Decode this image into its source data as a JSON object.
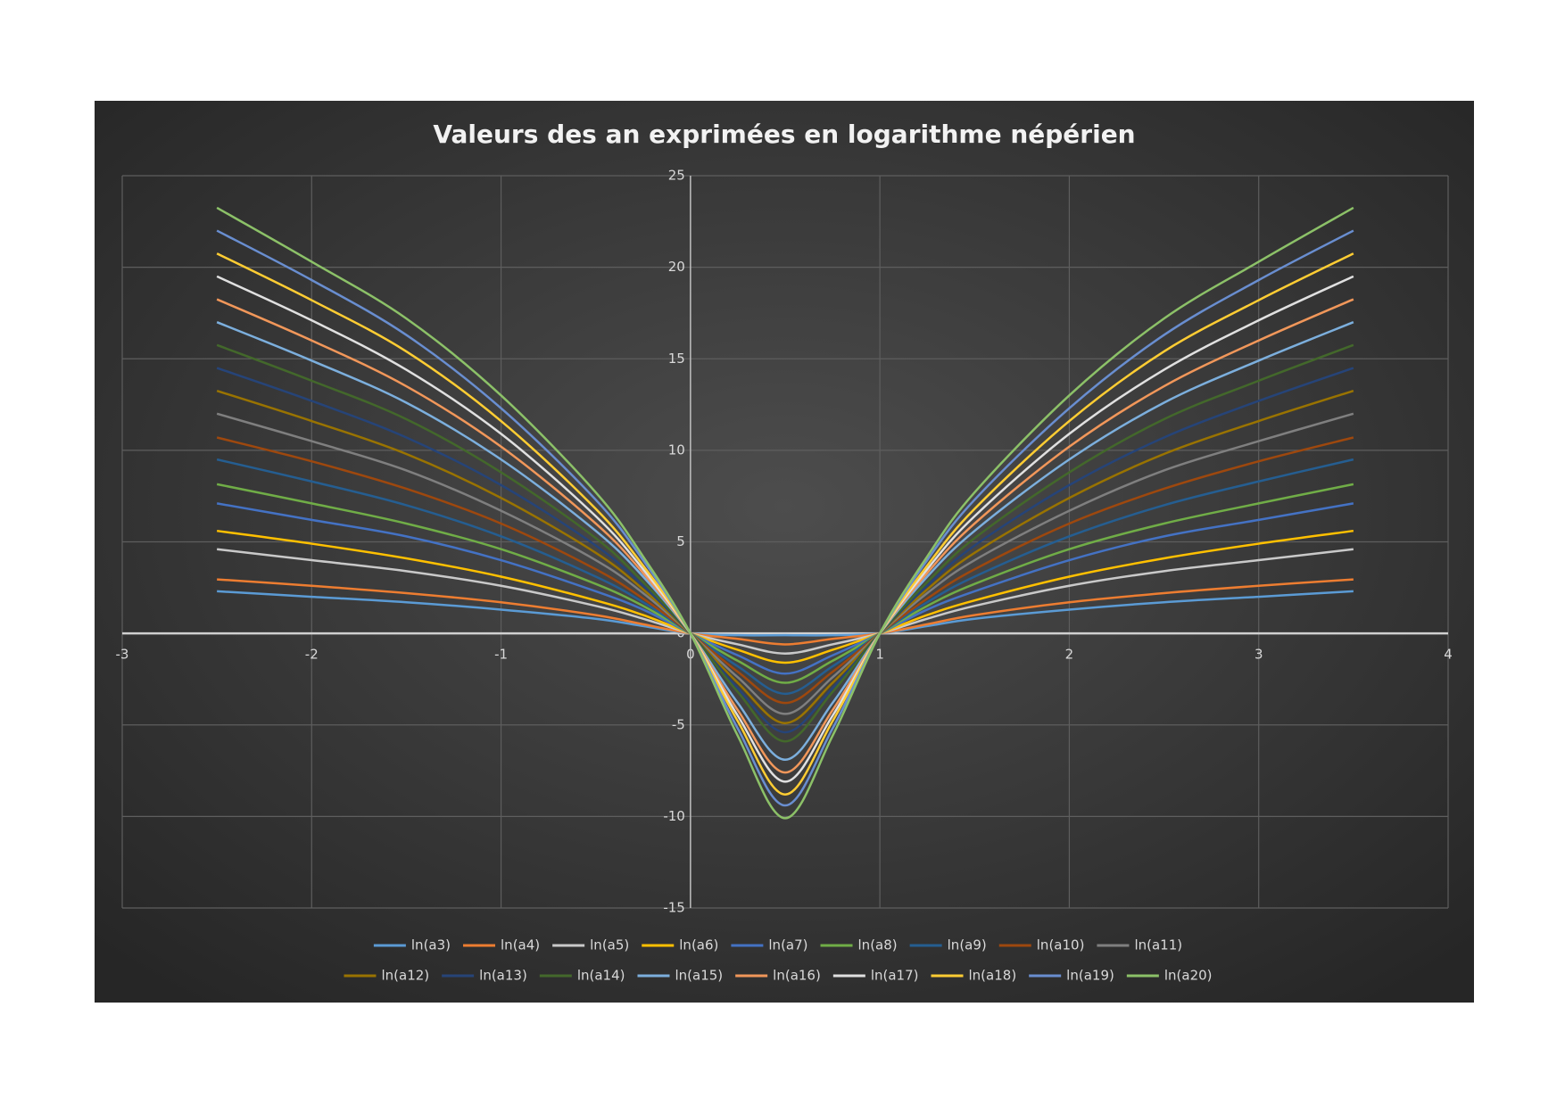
{
  "chart_data": {
    "type": "line",
    "title": "Valeurs des an exprimées en logarithme népérien",
    "x": [
      -2.5,
      -2,
      -1.5,
      -1,
      -0.5,
      -0.25,
      0,
      0.25,
      0.5,
      0.75,
      1,
      1.25,
      1.5,
      2,
      2.5,
      3,
      3.5
    ],
    "xlim": [
      -3,
      4
    ],
    "xticks": [
      -3,
      -2,
      -1,
      0,
      1,
      2,
      3,
      4
    ],
    "ylim": [
      -15,
      25
    ],
    "yticks": [
      -15,
      -10,
      -5,
      0,
      5,
      10,
      15,
      20,
      25
    ],
    "grid": true,
    "legend": "bottom",
    "series": [
      {
        "name": "ln(a3)",
        "color": "#5b9bd5",
        "values": [
          2.3,
          2.0,
          1.7,
          1.3,
          0.8,
          0.4,
          0,
          -0.1,
          -0.1,
          -0.1,
          0,
          0.4,
          0.8,
          1.3,
          1.7,
          2.0,
          2.3
        ]
      },
      {
        "name": "ln(a4)",
        "color": "#ed7d31",
        "values": [
          2.95,
          2.6,
          2.2,
          1.7,
          1.0,
          0.5,
          0,
          -0.3,
          -0.6,
          -0.3,
          0,
          0.5,
          1.0,
          1.7,
          2.2,
          2.6,
          2.95
        ]
      },
      {
        "name": "ln(a5)",
        "color": "#c9c9c9",
        "values": [
          4.6,
          4.0,
          3.4,
          2.6,
          1.5,
          0.8,
          0,
          -0.6,
          -1.1,
          -0.6,
          0,
          0.8,
          1.5,
          2.6,
          3.4,
          4.0,
          4.6
        ]
      },
      {
        "name": "ln(a6)",
        "color": "#ffc000",
        "values": [
          5.6,
          4.9,
          4.1,
          3.1,
          1.8,
          1.0,
          0,
          -0.9,
          -1.6,
          -0.9,
          0,
          1.0,
          1.8,
          3.1,
          4.1,
          4.9,
          5.6
        ]
      },
      {
        "name": "ln(a7)",
        "color": "#4472c4",
        "values": [
          7.1,
          6.2,
          5.3,
          4.0,
          2.3,
          1.3,
          0,
          -1.2,
          -2.2,
          -1.2,
          0,
          1.3,
          2.3,
          4.0,
          5.3,
          6.2,
          7.1
        ]
      },
      {
        "name": "ln(a8)",
        "color": "#70ad47",
        "values": [
          8.15,
          7.1,
          6.0,
          4.6,
          2.7,
          1.5,
          0,
          -1.5,
          -2.7,
          -1.5,
          0,
          1.5,
          2.7,
          4.6,
          6.0,
          7.1,
          8.15
        ]
      },
      {
        "name": "ln(a9)",
        "color": "#255e91",
        "values": [
          9.5,
          8.3,
          7.0,
          5.3,
          3.1,
          1.7,
          0,
          -1.8,
          -3.3,
          -1.8,
          0,
          1.7,
          3.1,
          5.3,
          7.0,
          8.3,
          9.5
        ]
      },
      {
        "name": "ln(a10)",
        "color": "#9e480e",
        "values": [
          10.7,
          9.4,
          7.9,
          6.0,
          3.5,
          1.9,
          0,
          -2.1,
          -3.8,
          -2.1,
          0,
          1.9,
          3.5,
          6.0,
          7.9,
          9.4,
          10.7
        ]
      },
      {
        "name": "ln(a11)",
        "color": "#7f7f7f",
        "values": [
          12.0,
          10.5,
          8.9,
          6.7,
          4.0,
          2.2,
          0,
          -2.4,
          -4.4,
          -2.4,
          0,
          2.2,
          4.0,
          6.7,
          8.9,
          10.5,
          12.0
        ]
      },
      {
        "name": "ln(a12)",
        "color": "#997300",
        "values": [
          13.25,
          11.6,
          9.8,
          7.4,
          4.4,
          2.4,
          0,
          -2.7,
          -4.9,
          -2.7,
          0,
          2.4,
          4.4,
          7.4,
          9.8,
          11.6,
          13.25
        ]
      },
      {
        "name": "ln(a13)",
        "color": "#264478",
        "values": [
          14.5,
          12.7,
          10.7,
          8.1,
          4.8,
          2.6,
          0,
          -3.0,
          -5.4,
          -3.0,
          0,
          2.6,
          4.8,
          8.1,
          10.7,
          12.7,
          14.5
        ]
      },
      {
        "name": "ln(a14)",
        "color": "#43682b",
        "values": [
          15.75,
          13.8,
          11.7,
          8.8,
          5.2,
          2.8,
          0,
          -3.2,
          -5.9,
          -3.2,
          0,
          2.8,
          5.2,
          8.8,
          11.7,
          13.8,
          15.75
        ]
      },
      {
        "name": "ln(a15)",
        "color": "#7cafdd",
        "values": [
          17.0,
          14.9,
          12.6,
          9.5,
          5.6,
          3.1,
          0,
          -3.8,
          -6.9,
          -3.8,
          0,
          3.1,
          5.6,
          9.5,
          12.6,
          14.9,
          17.0
        ]
      },
      {
        "name": "ln(a16)",
        "color": "#f1975a",
        "values": [
          18.25,
          16.0,
          13.5,
          10.2,
          6.0,
          3.3,
          0,
          -4.2,
          -7.6,
          -4.2,
          0,
          3.3,
          6.0,
          10.2,
          13.5,
          16.0,
          18.25
        ]
      },
      {
        "name": "ln(a17)",
        "color": "#e0e0e0",
        "values": [
          19.5,
          17.1,
          14.4,
          10.9,
          6.4,
          3.5,
          0,
          -4.5,
          -8.1,
          -4.5,
          0,
          3.5,
          6.4,
          10.9,
          14.4,
          17.1,
          19.5
        ]
      },
      {
        "name": "ln(a18)",
        "color": "#ffcd33",
        "values": [
          20.75,
          18.2,
          15.4,
          11.6,
          6.8,
          3.7,
          0,
          -4.8,
          -8.8,
          -4.8,
          0,
          3.7,
          6.8,
          11.6,
          15.4,
          18.2,
          20.75
        ]
      },
      {
        "name": "ln(a19)",
        "color": "#698ed0",
        "values": [
          22.0,
          19.3,
          16.3,
          12.3,
          7.3,
          4.0,
          0,
          -5.2,
          -9.4,
          -5.2,
          0,
          4.0,
          7.3,
          12.3,
          16.3,
          19.3,
          22.0
        ]
      },
      {
        "name": "ln(a20)",
        "color": "#8cc168",
        "values": [
          23.25,
          20.3,
          17.2,
          13.0,
          7.7,
          4.2,
          0,
          -5.6,
          -10.1,
          -5.6,
          0,
          4.2,
          7.7,
          13.0,
          17.2,
          20.3,
          23.25
        ]
      }
    ]
  }
}
